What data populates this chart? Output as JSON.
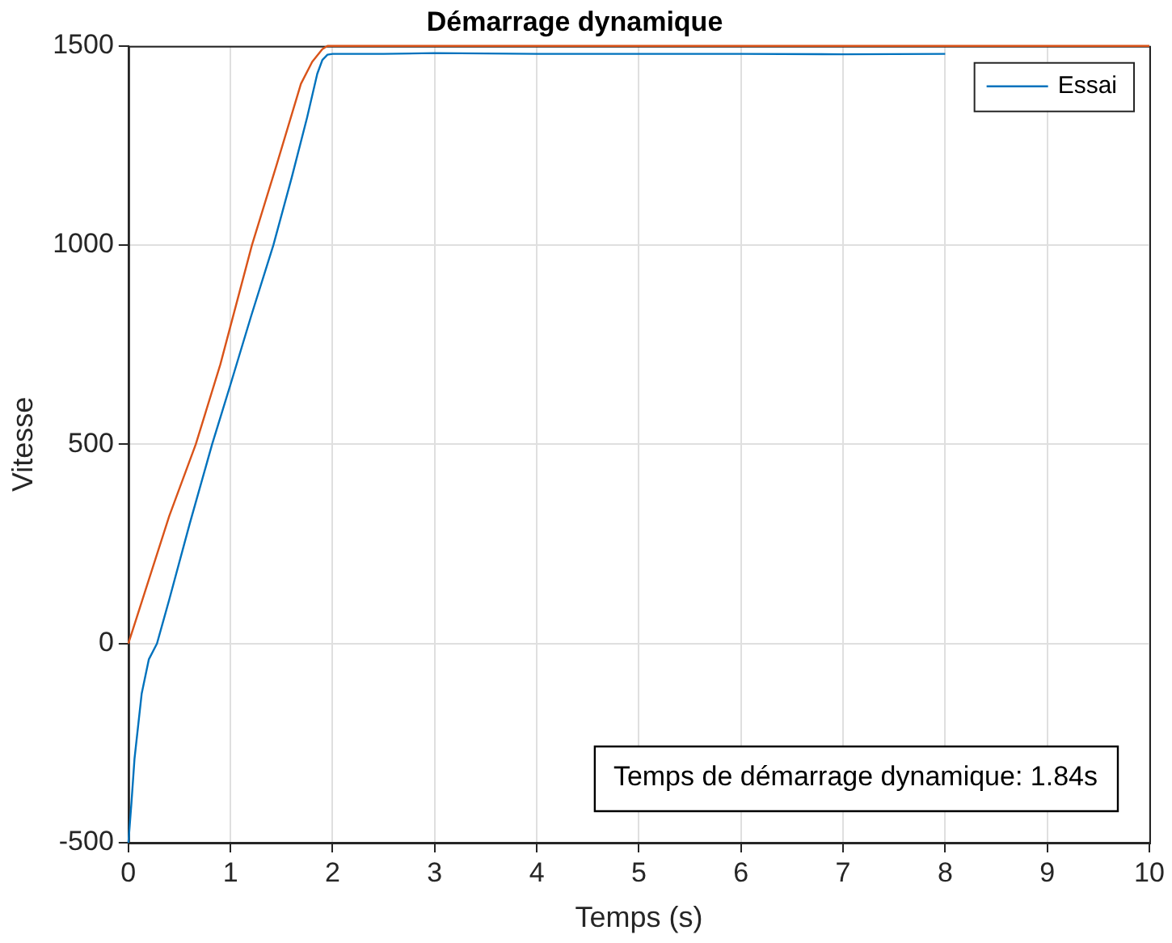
{
  "chart_data": {
    "type": "line",
    "title": "Démarrage dynamique",
    "xlabel": "Temps (s)",
    "ylabel": "Vitesse",
    "series": [
      {
        "name": "Essai",
        "color": "#0072bd",
        "x": [
          0,
          0.03,
          0.06,
          0.13,
          0.2,
          0.28,
          0.4,
          0.6,
          0.82,
          1.0,
          1.2,
          1.42,
          1.6,
          1.75,
          1.85,
          1.9,
          1.95,
          2.0,
          2.5,
          3,
          4,
          5,
          6,
          7,
          8
        ],
        "values": [
          -500,
          -400,
          -289,
          -126,
          -40,
          0,
          110,
          300,
          500,
          650,
          820,
          1000,
          1170,
          1320,
          1430,
          1465,
          1478,
          1480,
          1480,
          1482,
          1480,
          1480,
          1480,
          1479,
          1480
        ]
      },
      {
        "color": "#d95319",
        "x": [
          0,
          0.2,
          0.4,
          0.66,
          0.9,
          1.21,
          1.45,
          1.69,
          1.8,
          1.9,
          1.95,
          2.0,
          3,
          4,
          5,
          6,
          7,
          8,
          9,
          10
        ],
        "values": [
          0,
          160,
          320,
          500,
          700,
          1000,
          1200,
          1405,
          1460,
          1492,
          1500,
          1500,
          1500,
          1500,
          1500,
          1500,
          1500,
          1500,
          1500,
          1500
        ]
      }
    ],
    "xlim": [
      0,
      10
    ],
    "xticks": [
      0,
      1,
      2,
      3,
      4,
      5,
      6,
      7,
      8,
      9,
      10
    ],
    "ylim": [
      -500,
      1500
    ],
    "yticks": [
      -500,
      0,
      500,
      1000,
      1500
    ],
    "grid": true,
    "legend": "top right",
    "marker": "none",
    "line_style": "solid",
    "annotations": [
      "Temps de démarrage dynamique: 1.84s"
    ]
  }
}
